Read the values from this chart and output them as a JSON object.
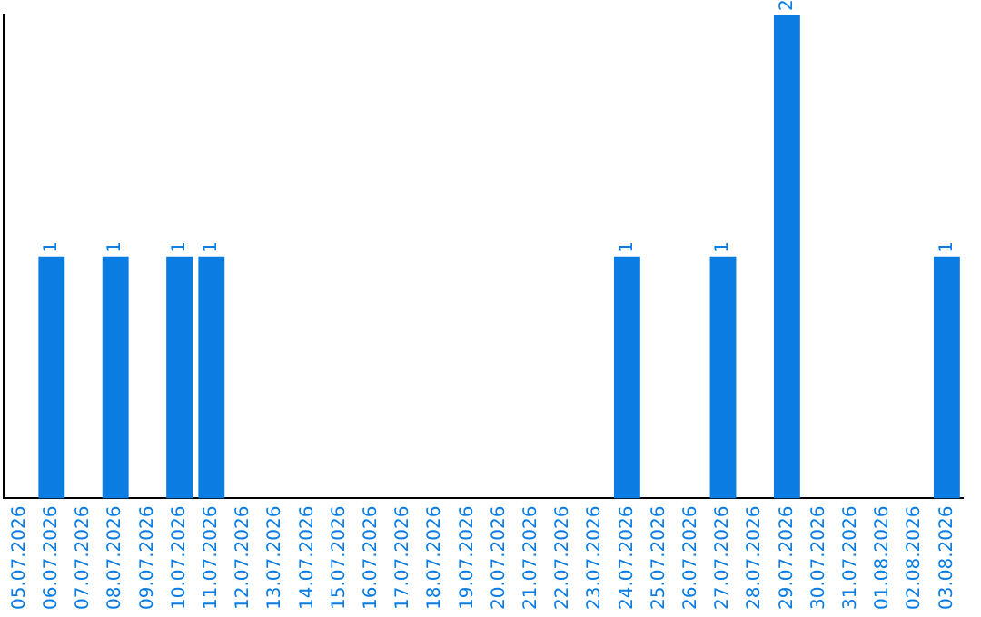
{
  "chart_data": {
    "type": "bar",
    "categories": [
      "05.07.2026",
      "06.07.2026",
      "07.07.2026",
      "08.07.2026",
      "09.07.2026",
      "10.07.2026",
      "11.07.2026",
      "12.07.2026",
      "13.07.2026",
      "14.07.2026",
      "15.07.2026",
      "16.07.2026",
      "17.07.2026",
      "18.07.2026",
      "19.07.2026",
      "20.07.2026",
      "21.07.2026",
      "22.07.2026",
      "23.07.2026",
      "24.07.2026",
      "25.07.2026",
      "26.07.2026",
      "27.07.2026",
      "28.07.2026",
      "29.07.2026",
      "30.07.2026",
      "31.07.2026",
      "01.08.2026",
      "02.08.2026",
      "03.08.2026"
    ],
    "values": [
      0,
      1,
      0,
      1,
      0,
      1,
      1,
      0,
      0,
      0,
      0,
      0,
      0,
      0,
      0,
      0,
      0,
      0,
      0,
      1,
      0,
      0,
      1,
      0,
      2,
      0,
      0,
      0,
      0,
      1
    ],
    "value_labels": [
      null,
      "1",
      null,
      "1",
      null,
      "1",
      "1",
      null,
      null,
      null,
      null,
      null,
      null,
      null,
      null,
      null,
      null,
      null,
      null,
      "1",
      null,
      null,
      "1",
      null,
      "2",
      null,
      null,
      null,
      null,
      "1"
    ],
    "color": "#0a7ce2",
    "grid": false,
    "legend": false,
    "tick_labels": "x"
  }
}
